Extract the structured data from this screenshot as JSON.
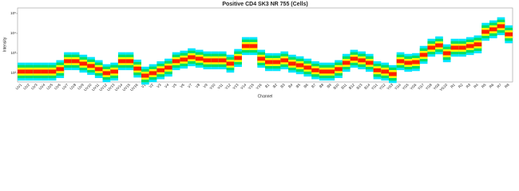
{
  "chart_data": {
    "type": "density-strip",
    "title": "Positive CD4 SK3 NR 755 (Cells)",
    "x_label": "Channel",
    "y_label": "Intensity",
    "log_scale": true,
    "colors": [
      "#00e5ff",
      "#00e060",
      "#ffff00",
      "#ff2000"
    ],
    "categories": [
      "UV1",
      "UV2",
      "UV3",
      "UV4",
      "UV5",
      "UV6",
      "UV7",
      "UV8",
      "UV9",
      "UV10",
      "UV11",
      "UV12",
      "UV13",
      "UV14",
      "UV15",
      "UV16",
      "V1",
      "V2",
      "V3",
      "V4",
      "V5",
      "V6",
      "V7",
      "V8",
      "V9",
      "V10",
      "V11",
      "V12",
      "V13",
      "V14",
      "V15",
      "V16",
      "B1",
      "B2",
      "B3",
      "B4",
      "B5",
      "B6",
      "B7",
      "B8",
      "B9",
      "B10",
      "B11",
      "B12",
      "B13",
      "B14",
      "YG1",
      "YG2",
      "YG3",
      "YG4",
      "YG5",
      "YG6",
      "YG7",
      "YG8",
      "YG9",
      "YG10",
      "R1",
      "R2",
      "R3",
      "R4",
      "R5",
      "R6",
      "R7",
      "R8"
    ],
    "values": [
      120,
      120,
      120,
      120,
      120,
      160,
      400,
      400,
      300,
      230,
      160,
      100,
      120,
      400,
      400,
      170,
      75,
      100,
      140,
      190,
      400,
      480,
      630,
      530,
      440,
      440,
      440,
      300,
      580,
      2300,
      2300,
      530,
      360,
      360,
      440,
      300,
      250,
      190,
      140,
      120,
      120,
      160,
      330,
      530,
      440,
      330,
      140,
      120,
      90,
      400,
      330,
      360,
      830,
      1900,
      2500,
      1000,
      1900,
      1900,
      2300,
      2800,
      12000,
      16000,
      23000,
      9000
    ],
    "ylim": [
      36,
      190000
    ],
    "yticks": [
      {
        "value": 100,
        "label": "10²"
      },
      {
        "value": 1000,
        "label": "10³"
      },
      {
        "value": 10000,
        "label": "10⁴"
      },
      {
        "value": 100000,
        "label": "10⁵"
      }
    ]
  }
}
